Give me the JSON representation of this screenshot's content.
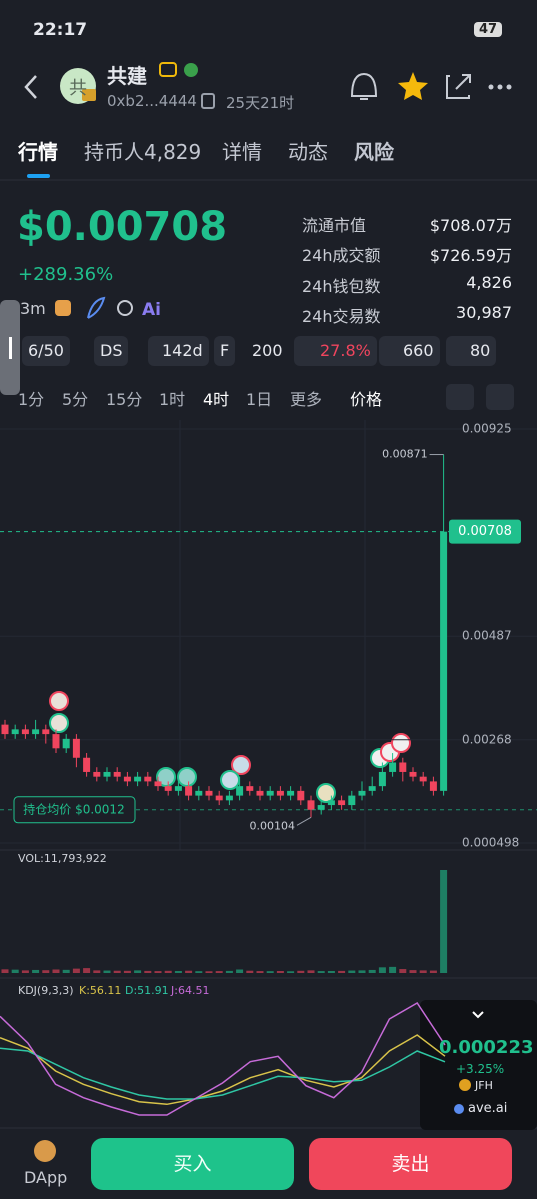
{
  "status_bar": {
    "time": "22:17",
    "battery": "47"
  },
  "header": {
    "avatar": "共",
    "name": "共建",
    "address": "0xb2...4444",
    "age": "25天21时"
  },
  "tabs": [
    "行情",
    "持币人4,829",
    "详情",
    "动态",
    "风险"
  ],
  "price": {
    "value": "$0.00708",
    "change": "+289.36%"
  },
  "stats": [
    {
      "label": "流通市值",
      "value": "$708.07万"
    },
    {
      "label": "24h成交额",
      "value": "$726.59万"
    },
    {
      "label": "24h钱包数",
      "value": "4,826"
    },
    {
      "label": "24h交易数",
      "value": "30,987"
    }
  ],
  "tools": {
    "interval": "3m"
  },
  "badges": [
    "6/50",
    "DS",
    "142d",
    "F",
    "200",
    "27.8%",
    "660",
    "80"
  ],
  "timeframes": [
    "1分",
    "5分",
    "15分",
    "1时",
    "4时",
    "1日",
    "更多",
    "价格"
  ],
  "chart_data": {
    "type": "candlestick",
    "ylim": [
      0.000498,
      0.00925
    ],
    "yticks": [
      0.00925,
      0.00487,
      0.00268,
      0.000498
    ],
    "current_price": 0.00708,
    "avg_cost": {
      "value": 0.0012,
      "label": "持仓均价 $0.0012"
    },
    "up_color": "#20c08d",
    "down_color": "#f0455e",
    "candles": [
      {
        "open": 0.003,
        "close": 0.0028,
        "high": 0.0031,
        "low": 0.0027
      },
      {
        "open": 0.0028,
        "close": 0.0029,
        "high": 0.003,
        "low": 0.0027
      },
      {
        "open": 0.0029,
        "close": 0.0028,
        "high": 0.003,
        "low": 0.0027
      },
      {
        "open": 0.0028,
        "close": 0.0029,
        "high": 0.0031,
        "low": 0.0027
      },
      {
        "open": 0.0029,
        "close": 0.0028,
        "high": 0.003,
        "low": 0.0026
      },
      {
        "open": 0.0028,
        "close": 0.0025,
        "high": 0.0029,
        "low": 0.0024
      },
      {
        "open": 0.0025,
        "close": 0.0027,
        "high": 0.0028,
        "low": 0.0024
      },
      {
        "open": 0.0027,
        "close": 0.0023,
        "high": 0.0028,
        "low": 0.0021
      },
      {
        "open": 0.0023,
        "close": 0.002,
        "high": 0.0024,
        "low": 0.0019
      },
      {
        "open": 0.002,
        "close": 0.0019,
        "high": 0.0021,
        "low": 0.0018
      },
      {
        "open": 0.0019,
        "close": 0.002,
        "high": 0.0021,
        "low": 0.0018
      },
      {
        "open": 0.002,
        "close": 0.0019,
        "high": 0.0021,
        "low": 0.0018
      },
      {
        "open": 0.0019,
        "close": 0.0018,
        "high": 0.002,
        "low": 0.0017
      },
      {
        "open": 0.0018,
        "close": 0.0019,
        "high": 0.002,
        "low": 0.0017
      },
      {
        "open": 0.0019,
        "close": 0.0018,
        "high": 0.002,
        "low": 0.0017
      },
      {
        "open": 0.0018,
        "close": 0.0017,
        "high": 0.0019,
        "low": 0.0016
      },
      {
        "open": 0.0017,
        "close": 0.0016,
        "high": 0.0018,
        "low": 0.0015
      },
      {
        "open": 0.0016,
        "close": 0.0017,
        "high": 0.0018,
        "low": 0.0015
      },
      {
        "open": 0.0017,
        "close": 0.0015,
        "high": 0.0018,
        "low": 0.0014
      },
      {
        "open": 0.0015,
        "close": 0.0016,
        "high": 0.0017,
        "low": 0.0014
      },
      {
        "open": 0.0016,
        "close": 0.0015,
        "high": 0.0017,
        "low": 0.0014
      },
      {
        "open": 0.0015,
        "close": 0.0014,
        "high": 0.0016,
        "low": 0.0013
      },
      {
        "open": 0.0014,
        "close": 0.0015,
        "high": 0.0016,
        "low": 0.0013
      },
      {
        "open": 0.0015,
        "close": 0.0017,
        "high": 0.0019,
        "low": 0.0014
      },
      {
        "open": 0.0017,
        "close": 0.0016,
        "high": 0.0018,
        "low": 0.0015
      },
      {
        "open": 0.0016,
        "close": 0.0015,
        "high": 0.0017,
        "low": 0.0014
      },
      {
        "open": 0.0015,
        "close": 0.0016,
        "high": 0.0017,
        "low": 0.0014
      },
      {
        "open": 0.0016,
        "close": 0.0015,
        "high": 0.0017,
        "low": 0.0014
      },
      {
        "open": 0.0015,
        "close": 0.0016,
        "high": 0.0017,
        "low": 0.0014
      },
      {
        "open": 0.0016,
        "close": 0.0014,
        "high": 0.0017,
        "low": 0.0013
      },
      {
        "open": 0.0014,
        "close": 0.0012,
        "high": 0.0015,
        "low": 0.00104
      },
      {
        "open": 0.0012,
        "close": 0.0013,
        "high": 0.0014,
        "low": 0.0011
      },
      {
        "open": 0.0013,
        "close": 0.0014,
        "high": 0.0015,
        "low": 0.0012
      },
      {
        "open": 0.0014,
        "close": 0.0013,
        "high": 0.0015,
        "low": 0.0012
      },
      {
        "open": 0.0013,
        "close": 0.0015,
        "high": 0.0016,
        "low": 0.0012
      },
      {
        "open": 0.0015,
        "close": 0.0016,
        "high": 0.0018,
        "low": 0.0014
      },
      {
        "open": 0.0016,
        "close": 0.0017,
        "high": 0.0019,
        "low": 0.0015
      },
      {
        "open": 0.0017,
        "close": 0.002,
        "high": 0.0022,
        "low": 0.0016
      },
      {
        "open": 0.002,
        "close": 0.0022,
        "high": 0.0024,
        "low": 0.0019
      },
      {
        "open": 0.0022,
        "close": 0.002,
        "high": 0.0023,
        "low": 0.0018
      },
      {
        "open": 0.002,
        "close": 0.0019,
        "high": 0.0021,
        "low": 0.0018
      },
      {
        "open": 0.0019,
        "close": 0.0018,
        "high": 0.002,
        "low": 0.0017
      },
      {
        "open": 0.0018,
        "close": 0.0016,
        "high": 0.0019,
        "low": 0.0015
      },
      {
        "open": 0.0016,
        "close": 0.00708,
        "high": 0.00871,
        "low": 0.0015
      }
    ],
    "volume_label": "VOL:11,793,922",
    "volumes": [
      420000,
      380000,
      300000,
      350000,
      320000,
      400000,
      360000,
      500000,
      560000,
      300000,
      280000,
      260000,
      250000,
      300000,
      240000,
      220000,
      250000,
      230000,
      260000,
      210000,
      200000,
      220000,
      240000,
      400000,
      260000,
      220000,
      210000,
      230000,
      200000,
      250000,
      300000,
      220000,
      230000,
      240000,
      280000,
      300000,
      350000,
      650000,
      700000,
      450000,
      330000,
      300000,
      280000,
      11793922
    ],
    "kdj_label": "KDJ(9,3,3)",
    "kdj": [
      {
        "name": "K",
        "label": "K:56.11",
        "color": "#d8c34a",
        "values": [
          70,
          62,
          45,
          35,
          28,
          22,
          20,
          24,
          30,
          40,
          46,
          38,
          33,
          40,
          60,
          72,
          56.11
        ]
      },
      {
        "name": "D",
        "label": "D:51.91",
        "color": "#2fc6a4",
        "values": [
          62,
          60,
          50,
          40,
          33,
          27,
          24,
          24,
          27,
          34,
          41,
          40,
          37,
          38,
          48,
          60,
          51.91
        ]
      },
      {
        "name": "J",
        "label": "J:64.51",
        "color": "#c66bd8",
        "values": [
          86,
          66,
          35,
          25,
          18,
          12,
          12,
          24,
          36,
          52,
          56,
          34,
          25,
          44,
          84,
          96,
          64.51
        ]
      }
    ]
  },
  "ticker": {
    "price": "0.000223",
    "change": "+3.25%",
    "symbol": "JFH",
    "brand": "ave.ai"
  },
  "bottom": {
    "dapp": "DApp",
    "buy": "买入",
    "sell": "卖出"
  }
}
